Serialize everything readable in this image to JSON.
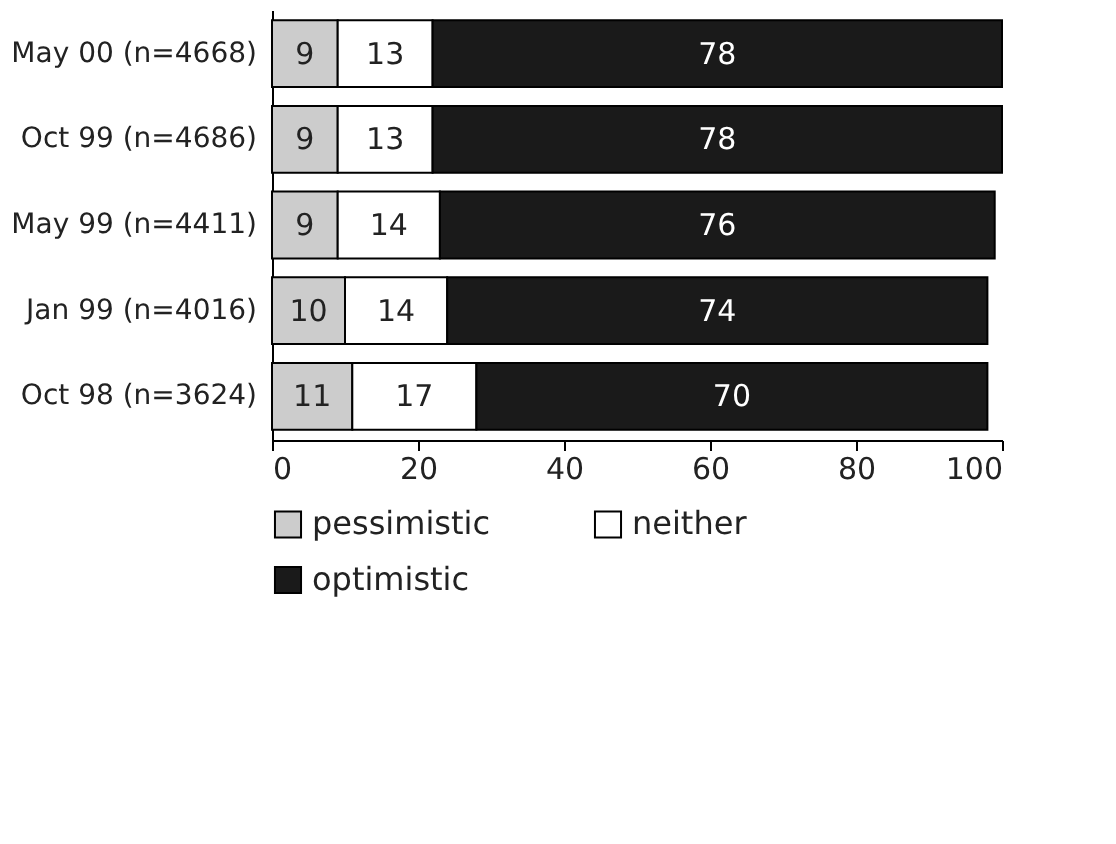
{
  "chart_data": {
    "type": "bar",
    "orientation": "horizontal",
    "stacked": true,
    "categories": [
      "May 00 (n=4668)",
      "Oct 99 (n=4686)",
      "May 99 (n=4411)",
      "Jan 99 (n=4016)",
      "Oct 98 (n=3624)"
    ],
    "series": [
      {
        "name": "pessimistic",
        "color": "#cccccc",
        "values": [
          9,
          9,
          9,
          10,
          11
        ]
      },
      {
        "name": "neither",
        "color": "#ffffff",
        "values": [
          13,
          13,
          14,
          14,
          17
        ]
      },
      {
        "name": "optimistic",
        "color": "#1a1a1a",
        "values": [
          78,
          78,
          76,
          74,
          70
        ]
      }
    ],
    "xlim": [
      0,
      100
    ],
    "xticks": [
      0,
      20,
      40,
      60,
      80,
      100
    ],
    "data_labels": true,
    "grid": false,
    "legend": "bottom"
  }
}
